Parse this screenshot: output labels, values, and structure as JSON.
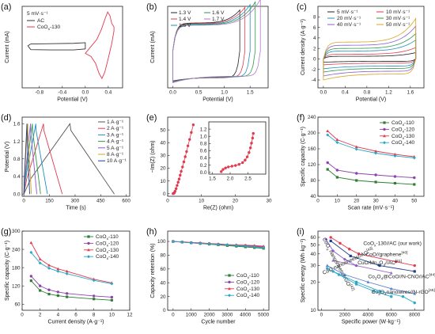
{
  "chart_data": [
    {
      "id": "a",
      "letter": "(a)",
      "type": "line",
      "xlabel": "Potential (V)",
      "ylabel": "Current (mA)",
      "xlim": [
        -1.1,
        0.65
      ],
      "ylim": [
        -6.5,
        6.5
      ],
      "xticks": [
        -0.8,
        -0.4,
        0.0,
        0.4
      ],
      "xtick_labels": [
        "-0.8",
        "-0.4",
        "0.0",
        "0.4"
      ],
      "yticks": [],
      "ytick_labels": [],
      "annotation": "5 mV·s⁻¹",
      "legend_position": "top-left",
      "series": [
        {
          "name": "AC",
          "color": "#333333",
          "x": [
            -1.0,
            -0.95,
            -0.6,
            -0.2,
            0.0,
            0.0,
            -0.2,
            -0.6,
            -0.95,
            -1.0
          ],
          "y": [
            0.2,
            0.5,
            0.55,
            0.6,
            0.7,
            -0.3,
            -0.45,
            -0.45,
            -0.4,
            0.2
          ]
        },
        {
          "name": "CoO",
          "sub": "x",
          "suffix": "-130",
          "color": "#e23a4e",
          "x": [
            0.0,
            0.1,
            0.2,
            0.28,
            0.34,
            0.39,
            0.43,
            0.46,
            0.5,
            0.5,
            0.46,
            0.4,
            0.34,
            0.29,
            0.24,
            0.18,
            0.1,
            0.0
          ],
          "y": [
            -1.0,
            0.1,
            1.2,
            2.8,
            4.4,
            5.6,
            5.0,
            3.8,
            3.2,
            2.6,
            0.5,
            -1.8,
            -4.0,
            -5.0,
            -4.2,
            -2.6,
            -1.5,
            -1.0
          ]
        }
      ]
    },
    {
      "id": "b",
      "letter": "(b)",
      "type": "line",
      "xlabel": "Potential (V)",
      "ylabel": "Current (mA)",
      "xlim": [
        -0.1,
        1.85
      ],
      "ylim": [
        -40,
        48
      ],
      "xticks": [
        0.0,
        0.5,
        1.0,
        1.5
      ],
      "xtick_labels": [
        "0.0",
        "0.5",
        "1.0",
        "1.5"
      ],
      "yticks": [],
      "ytick_labels": [],
      "legend_position": "top-left",
      "series": [
        {
          "name": "1.3 V",
          "color": "#222222",
          "vmax": 1.3
        },
        {
          "name": "1.4 V",
          "color": "#e23a4e",
          "vmax": 1.4
        },
        {
          "name": "1.5 V",
          "color": "#1f8fbf",
          "vmax": 1.5
        },
        {
          "name": "1.6 V",
          "color": "#2e9a4a",
          "vmax": 1.6
        },
        {
          "name": "1.7 V",
          "color": "#b07acc",
          "vmax": 1.7
        }
      ]
    },
    {
      "id": "c",
      "letter": "(c)",
      "type": "line",
      "xlabel": "Potential (V)",
      "ylabel": "Current density (A·g⁻¹)",
      "xlim": [
        -0.1,
        1.85
      ],
      "ylim": [
        -5.5,
        10
      ],
      "xticks": [
        0.0,
        0.4,
        0.8,
        1.2,
        1.6
      ],
      "xtick_labels": [
        "0.0",
        "0.4",
        "0.8",
        "1.2",
        "1.6"
      ],
      "yticks": [
        -4,
        -2,
        0,
        2,
        4,
        6,
        8
      ],
      "ytick_labels": [
        "-4",
        "-2",
        "0",
        "2",
        "4",
        "6",
        "8"
      ],
      "legend_position": "top",
      "series": [
        {
          "name": "5 mV·s⁻¹",
          "color": "#222222",
          "amp": 0.5
        },
        {
          "name": "10 mV·s⁻¹",
          "color": "#e23a4e",
          "amp": 0.9
        },
        {
          "name": "20 mV·s⁻¹",
          "color": "#1f8fbf",
          "amp": 1.5
        },
        {
          "name": "30 mV·s⁻¹",
          "color": "#2e9a4a",
          "amp": 2.0
        },
        {
          "name": "40 mV·s⁻¹",
          "color": "#8a5bd0",
          "amp": 2.6
        },
        {
          "name": "50 mV·s⁻¹",
          "color": "#d9a520",
          "amp": 3.2
        }
      ]
    },
    {
      "id": "d",
      "letter": "(d)",
      "type": "line",
      "xlabel": "Time (s)",
      "ylabel": "Potential (V)",
      "xlim": [
        -10,
        620
      ],
      "ylim": [
        -0.05,
        1.75
      ],
      "xticks": [
        0,
        150,
        300,
        450,
        600
      ],
      "xtick_labels": [
        "0",
        "150",
        "300",
        "450",
        "600"
      ],
      "yticks": [
        0.0,
        0.4,
        0.8,
        1.2,
        1.6
      ],
      "ytick_labels": [
        "0.0",
        "0.4",
        "0.8",
        "1.2",
        "1.6"
      ],
      "legend_position": "right",
      "series": [
        {
          "name": "1 A·g⁻¹",
          "color": "#555555",
          "tc": 270,
          "td": 530
        },
        {
          "name": "2 A·g⁻¹",
          "color": "#e23a4e",
          "tc": 115,
          "td": 225
        },
        {
          "name": "3 A·g⁻¹",
          "color": "#1f8fbf",
          "tc": 70,
          "td": 138
        },
        {
          "name": "4 A·g⁻¹",
          "color": "#2e9a4a",
          "tc": 50,
          "td": 98
        },
        {
          "name": "5 A·g⁻¹",
          "color": "#8a5bd0",
          "tc": 39,
          "td": 76
        },
        {
          "name": "8 A·g⁻¹",
          "color": "#d9a520",
          "tc": 23,
          "td": 44
        },
        {
          "name": "10 A·g⁻¹",
          "color": "#1a3f8f",
          "tc": 18,
          "td": 34
        }
      ]
    },
    {
      "id": "e",
      "letter": "(e)",
      "type": "scatter",
      "xlabel": "Re(Z) (ohm)",
      "ylabel": "−Im(Z) (ohm)",
      "xlim": [
        0,
        30
      ],
      "ylim": [
        -2,
        60
      ],
      "xticks": [
        0,
        10,
        20,
        30
      ],
      "xtick_labels": [
        "0",
        "10",
        "20",
        "30"
      ],
      "yticks": [
        0,
        10,
        20,
        30,
        40,
        50
      ],
      "ytick_labels": [
        "0",
        "10",
        "20",
        "30",
        "40",
        "50"
      ],
      "color": "#e23a4e",
      "x": [
        1.6,
        1.8,
        2.0,
        2.2,
        2.5,
        2.8,
        3.1,
        3.4,
        3.7,
        4.0,
        4.4,
        4.8,
        5.2,
        5.6,
        6.0,
        6.5,
        7.0,
        7.6
      ],
      "y": [
        0.1,
        0.3,
        0.9,
        2.0,
        4.0,
        6.5,
        9.0,
        11.5,
        14.5,
        17.5,
        21.0,
        25.0,
        29.0,
        33.0,
        37.5,
        42.5,
        48.0,
        54.0
      ],
      "inset": {
        "xlim": [
          1.4,
          3.0
        ],
        "ylim": [
          -0.05,
          1.4
        ],
        "xticks": [
          1.5,
          2.0,
          2.5
        ],
        "xtick_labels": [
          "1.5",
          "2.0",
          "2.5"
        ],
        "yticks": [
          0.0,
          0.2,
          0.4,
          0.6,
          0.8,
          1.0,
          1.2
        ],
        "ytick_labels": [
          "0.0",
          "0.2",
          "0.4",
          "0.6",
          "0.8",
          "1.0",
          "1.2"
        ],
        "x": [
          1.75,
          1.8,
          1.87,
          1.95,
          2.05,
          2.15,
          2.25,
          2.35,
          2.42,
          2.48,
          2.53,
          2.57,
          2.6,
          2.63,
          2.65
        ],
        "y": [
          0.02,
          0.08,
          0.12,
          0.15,
          0.17,
          0.19,
          0.22,
          0.27,
          0.34,
          0.43,
          0.55,
          0.68,
          0.81,
          0.95,
          1.08
        ]
      }
    },
    {
      "id": "f",
      "letter": "(f)",
      "type": "line",
      "xlabel": "Scan rate (mV·s⁻¹)",
      "ylabel": "Specific capacity (C·g⁻¹)",
      "xlim": [
        0,
        55
      ],
      "ylim": [
        40,
        240
      ],
      "xticks": [
        0,
        10,
        20,
        30,
        40,
        50
      ],
      "xtick_labels": [
        "0",
        "10",
        "20",
        "30",
        "40",
        "50"
      ],
      "yticks": [
        40,
        80,
        120,
        160,
        200,
        240
      ],
      "ytick_labels": [
        "40",
        "80",
        "120",
        "160",
        "200",
        "240"
      ],
      "legend_position": "top-right",
      "x": [
        5,
        10,
        20,
        30,
        40,
        50
      ],
      "series": [
        {
          "name": "CoO",
          "sub": "x",
          "suffix": "-110",
          "color": "#2e7d32",
          "values": [
            108,
            88,
            80,
            76,
            73,
            70
          ]
        },
        {
          "name": "CoO",
          "sub": "x",
          "suffix": "-120",
          "color": "#8e44ad",
          "values": [
            125,
            106,
            98,
            94,
            90,
            87
          ]
        },
        {
          "name": "CoO",
          "sub": "x",
          "suffix": "-130",
          "color": "#e23a4e",
          "values": [
            205,
            183,
            165,
            154,
            146,
            140
          ]
        },
        {
          "name": "CoO",
          "sub": "x",
          "suffix": "-140",
          "color": "#2aa7c9",
          "values": [
            195,
            176,
            159,
            149,
            142,
            137
          ]
        }
      ]
    },
    {
      "id": "g",
      "letter": "(g)",
      "type": "line",
      "xlabel": "Current density (A·g⁻¹)",
      "ylabel": "Specific capacity (C·g⁻¹)",
      "xlim": [
        0,
        12
      ],
      "ylim": [
        40,
        300
      ],
      "xticks": [
        0,
        2,
        4,
        6,
        8,
        10,
        12
      ],
      "xtick_labels": [
        "0",
        "2",
        "4",
        "6",
        "8",
        "10",
        "12"
      ],
      "yticks": [
        60,
        120,
        180,
        240,
        300
      ],
      "ytick_labels": [
        "60",
        "120",
        "180",
        "240",
        "300"
      ],
      "legend_position": "top-right",
      "x": [
        1,
        2,
        3,
        4,
        5,
        8,
        10
      ],
      "series": [
        {
          "name": "CoO",
          "sub": "x",
          "suffix": "-110",
          "color": "#2e7d32",
          "values": [
            137,
            105,
            93,
            88,
            84,
            77,
            73
          ]
        },
        {
          "name": "CoO",
          "sub": "x",
          "suffix": "-120",
          "color": "#8e44ad",
          "values": [
            152,
            120,
            107,
            100,
            95,
            87,
            83
          ]
        },
        {
          "name": "CoO",
          "sub": "x",
          "suffix": "-130",
          "color": "#e23a4e",
          "values": [
            262,
            208,
            188,
            176,
            168,
            142,
            130
          ]
        },
        {
          "name": "CoO",
          "sub": "x",
          "suffix": "-140",
          "color": "#2aa7c9",
          "values": [
            230,
            195,
            178,
            168,
            160,
            138,
            127
          ]
        }
      ]
    },
    {
      "id": "h",
      "letter": "(h)",
      "type": "line",
      "xlabel": "Cycle number",
      "ylabel": "Capacity retention (%)",
      "xlim": [
        -300,
        5300
      ],
      "ylim": [
        0,
        115
      ],
      "xticks": [
        0,
        1000,
        2000,
        3000,
        4000,
        5000
      ],
      "xtick_labels": [
        "0",
        "1000",
        "2000",
        "3000",
        "4000",
        "5000"
      ],
      "yticks": [
        0,
        20,
        40,
        60,
        80,
        100
      ],
      "ytick_labels": [
        "0",
        "20",
        "40",
        "60",
        "80",
        "100"
      ],
      "legend_position": "bottom-right",
      "x": [
        0,
        500,
        1000,
        1500,
        2000,
        2500,
        3000,
        3500,
        4000,
        4500,
        5000
      ],
      "series": [
        {
          "name": "CoO",
          "sub": "x",
          "suffix": "-110",
          "color": "#2e7d32",
          "values": [
            100,
            99,
            98,
            97,
            96,
            95,
            94,
            93,
            92,
            91,
            90
          ]
        },
        {
          "name": "CoO",
          "sub": "x",
          "suffix": "-120",
          "color": "#8e44ad",
          "values": [
            100,
            99,
            98,
            97.5,
            97,
            96,
            95,
            94.5,
            94,
            93,
            92
          ]
        },
        {
          "name": "CoO",
          "sub": "x",
          "suffix": "-130",
          "color": "#e23a4e",
          "values": [
            100,
            99.5,
            98.5,
            98,
            97,
            96.5,
            95.5,
            95,
            94.5,
            94,
            93
          ]
        },
        {
          "name": "CoO",
          "sub": "x",
          "suffix": "-140",
          "color": "#2aa7c9",
          "values": [
            100,
            99,
            98,
            97,
            96.5,
            95.5,
            95,
            94,
            93,
            92,
            91
          ]
        }
      ]
    },
    {
      "id": "i",
      "letter": "(i)",
      "type": "line",
      "xlabel": "Specific power (W·kg⁻¹)",
      "ylabel": "Specific energy (Wh·kg⁻¹)",
      "xlim": [
        -300,
        8800
      ],
      "ylim": [
        10,
        70
      ],
      "yscale": "log",
      "xticks": [
        0,
        2000,
        4000,
        6000,
        8000
      ],
      "xtick_labels": [
        "0",
        "2000",
        "4000",
        "6000",
        "8000"
      ],
      "yticks": [
        10,
        20,
        30,
        40,
        50,
        60
      ],
      "ytick_labels": [
        "10",
        "20",
        "30",
        "40",
        "50",
        "60"
      ],
      "series": [
        {
          "name": "CoO",
          "sub": "x",
          "suffix": "-130//AC (our work)",
          "color": "#e23a4e",
          "x": [
            800,
            1600,
            2400,
            3200,
            6400,
            8000
          ],
          "values": [
            60,
            52,
            45,
            40,
            33,
            30
          ],
          "label_pos": [
            3600,
            50
          ]
        },
        {
          "name": "CoO//graphene",
          "sup": "[40]",
          "color": "#1a3f8f",
          "x": [
            800,
            2500,
            5000,
            8000
          ],
          "values": [
            55,
            38,
            30,
            26
          ],
          "label_pos": [
            3800,
            38
          ]
        },
        {
          "name": "CuO/Mn",
          "sub": "3",
          "tail": "O",
          "sub2": "4",
          "end": "//AC",
          "sup": "[41]",
          "color": "#9a6abf",
          "x": [
            1000,
            3000,
            6000
          ],
          "values": [
            34,
            30,
            25
          ],
          "label_pos": [
            3100,
            31
          ]
        },
        {
          "name": "CoO",
          "sub": "x",
          "tail": " nanosheets//rGO",
          "sup": "[42]",
          "color": "#8a5bd0",
          "x": [
            400,
            1000,
            2000,
            3000
          ],
          "values": [
            57,
            43,
            35,
            30
          ],
          "label_pos": [
            80,
            58
          ],
          "rotate": 62
        },
        {
          "name": "Co",
          "sub": "3",
          "tail": "O",
          "sub2": "4",
          "end": "@CoO//N-CNO//AC",
          "sup": "[44]",
          "color": "#5c7fc9",
          "x": [
            500,
            2000,
            4000,
            6000,
            8000
          ],
          "values": [
            30,
            24,
            20,
            17,
            15
          ],
          "label_pos": [
            4000,
            22
          ]
        },
        {
          "name": "CoO nanosheets//AC",
          "sup": "[43]",
          "color": "#2aa7c9",
          "x": [
            500,
            1500,
            3000,
            4500,
            6000
          ],
          "values": [
            28,
            24,
            19,
            16,
            14
          ],
          "label_pos": [
            180,
            24
          ],
          "rotate": -25
        },
        {
          "name": "Co",
          "sub": "3",
          "tail": "O",
          "sub2": "4",
          "end": "nanowires//N-rGO",
          "sup": "[45]",
          "color": "#2aa7c9",
          "x": [
            1000,
            3000,
            5000,
            7000,
            8000
          ],
          "values": [
            26,
            20,
            16,
            14,
            12
          ],
          "label_pos": [
            4300,
            15
          ]
        }
      ]
    }
  ]
}
